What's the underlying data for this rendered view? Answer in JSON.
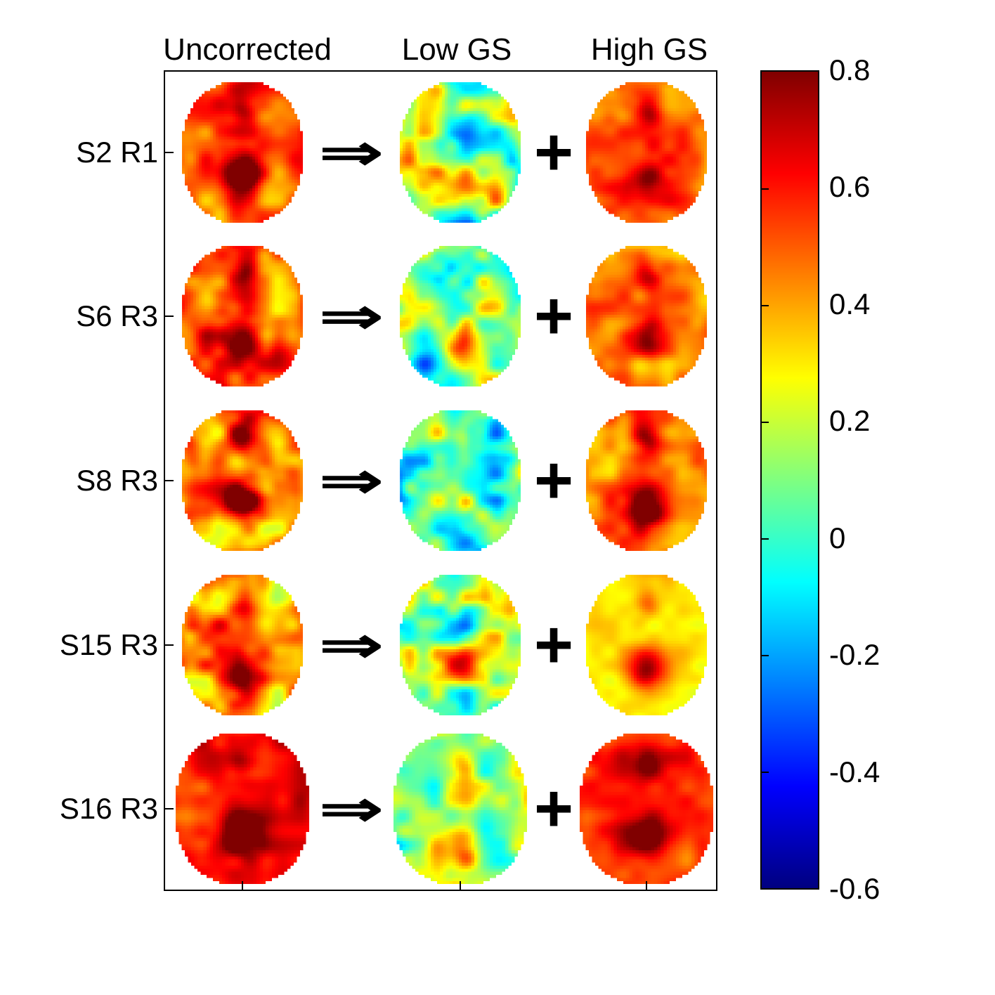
{
  "figure": {
    "arrow": "⇒",
    "plus": "+"
  },
  "colorbar": {
    "ticks": [
      "0.8",
      "0.6",
      "0.4",
      "0.2",
      "0",
      "-0.2",
      "-0.4",
      "-0.6"
    ]
  },
  "chart_data": {
    "type": "heatmap",
    "columns": [
      "Uncorrected",
      "Low GS",
      "High GS"
    ],
    "rows": [
      "S2 R1",
      "S6 R3",
      "S8 R3",
      "S15 R3",
      "S16 R3"
    ],
    "operators": [
      "⇒",
      "+"
    ],
    "colormap": "jet",
    "colorbar_range": [
      -0.6,
      0.8
    ],
    "colorbar_ticks": [
      0.8,
      0.6,
      0.4,
      0.2,
      0,
      -0.2,
      -0.4,
      -0.6
    ],
    "grid": [
      {
        "row": "S2 R1",
        "cells": [
          {
            "column": "Uncorrected",
            "mean": 0.52,
            "spread": 0.22
          },
          {
            "column": "Low GS",
            "mean": 0.1,
            "spread": 0.42
          },
          {
            "column": "High GS",
            "mean": 0.48,
            "spread": 0.16
          }
        ]
      },
      {
        "row": "S6 R3",
        "cells": [
          {
            "column": "Uncorrected",
            "mean": 0.48,
            "spread": 0.26
          },
          {
            "column": "Low GS",
            "mean": 0.08,
            "spread": 0.4
          },
          {
            "column": "High GS",
            "mean": 0.42,
            "spread": 0.2
          }
        ]
      },
      {
        "row": "S8 R3",
        "cells": [
          {
            "column": "Uncorrected",
            "mean": 0.46,
            "spread": 0.26
          },
          {
            "column": "Low GS",
            "mean": 0.02,
            "spread": 0.42
          },
          {
            "column": "High GS",
            "mean": 0.46,
            "spread": 0.18
          }
        ]
      },
      {
        "row": "S15 R3",
        "cells": [
          {
            "column": "Uncorrected",
            "mean": 0.42,
            "spread": 0.3
          },
          {
            "column": "Low GS",
            "mean": 0.05,
            "spread": 0.45
          },
          {
            "column": "High GS",
            "mean": 0.33,
            "spread": 0.1
          }
        ]
      },
      {
        "row": "S16 R3",
        "cells": [
          {
            "column": "Uncorrected",
            "mean": 0.62,
            "spread": 0.18
          },
          {
            "column": "Low GS",
            "mean": 0.12,
            "spread": 0.38
          },
          {
            "column": "High GS",
            "mean": 0.55,
            "spread": 0.16
          }
        ]
      }
    ]
  }
}
